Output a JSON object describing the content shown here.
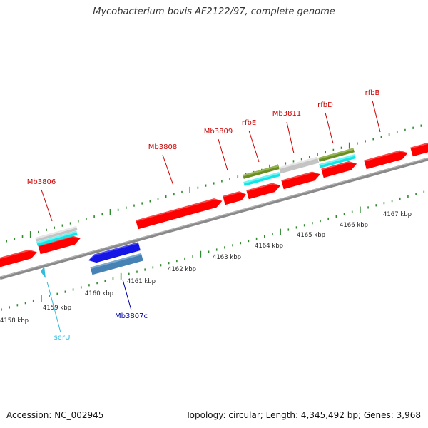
{
  "title": "Mycobacterium bovis AF2122/97, complete genome",
  "footer": {
    "accession": "Accession: NC_002945",
    "stats": "Topology: circular; Length: 4,345,492 bp; Genes: 3,968"
  },
  "colors": {
    "cds": "#ff0000",
    "gene_gray": "#c4c4c4",
    "cyan": "#11e5e5",
    "olive": "#6b8e23",
    "blue": "#1515e6",
    "steelblue": "#4682b4",
    "backbone": "#8a8a8a",
    "tick": "#2e8b2e",
    "label_red": "#cc0000",
    "label_blue": "#0000aa",
    "label_cyan": "#33bbdd"
  },
  "kbp_labels": [
    "4158 kbp",
    "4159 kbp",
    "4160 kbp",
    "4161 kbp",
    "4162 kbp",
    "4163 kbp",
    "4164 kbp",
    "4165 kbp",
    "4166 kbp",
    "4167 kbp"
  ],
  "gene_labels": [
    {
      "text": "Mb3806",
      "color": "label_red"
    },
    {
      "text": "Mb3808",
      "color": "label_red"
    },
    {
      "text": "Mb3809",
      "color": "label_red"
    },
    {
      "text": "rfbE",
      "color": "label_red"
    },
    {
      "text": "Mb3811",
      "color": "label_red"
    },
    {
      "text": "rfbD",
      "color": "label_red"
    },
    {
      "text": "rfbB",
      "color": "label_red"
    },
    {
      "text": "Mb3807c",
      "color": "label_blue"
    },
    {
      "text": "serU",
      "color": "label_cyan"
    }
  ]
}
